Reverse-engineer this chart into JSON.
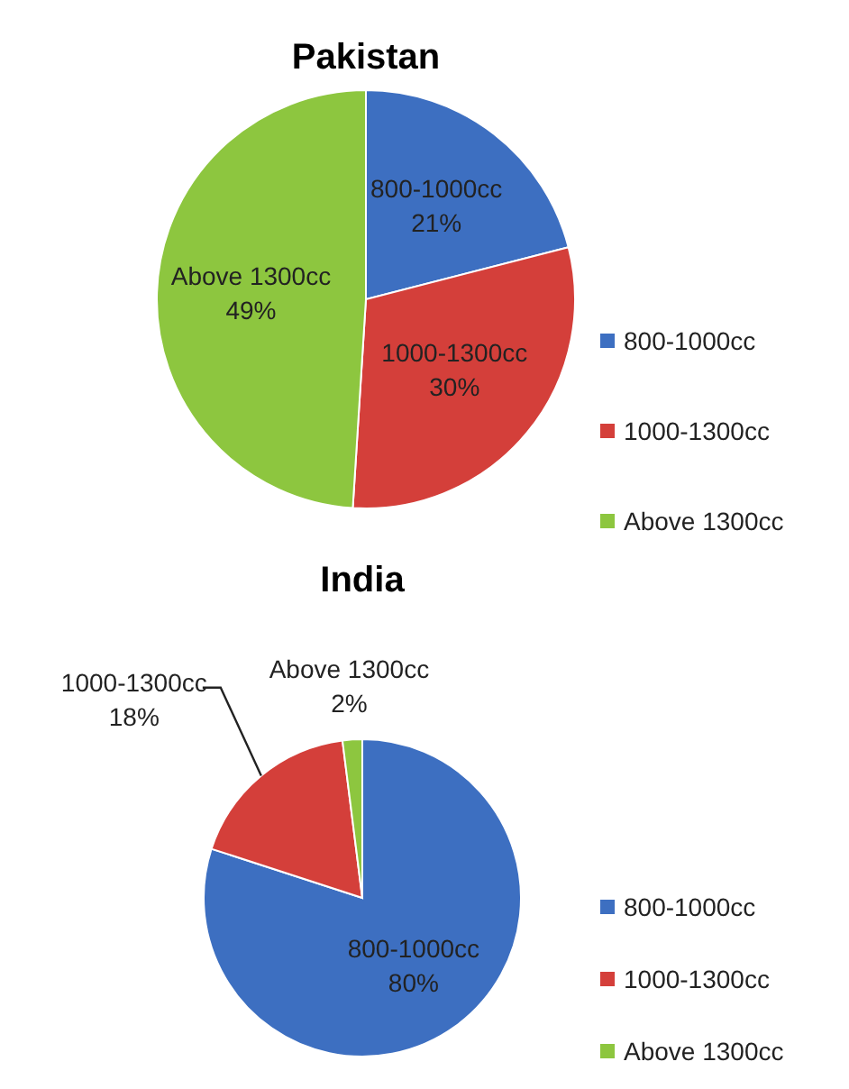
{
  "chart_data": [
    {
      "type": "pie",
      "title": "Pakistan",
      "categories": [
        "800-1000cc",
        "1000-1300cc",
        "Above 1300cc"
      ],
      "values": [
        21,
        30,
        49
      ],
      "value_labels": [
        "21%",
        "30%",
        "49%"
      ],
      "colors": [
        "#3d6fc1",
        "#d43f3a",
        "#8dc63f"
      ],
      "legend": "right"
    },
    {
      "type": "pie",
      "title": "India",
      "categories": [
        "800-1000cc",
        "1000-1300cc",
        "Above 1300cc"
      ],
      "values": [
        80,
        18,
        2
      ],
      "value_labels": [
        "80%",
        "18%",
        "2%"
      ],
      "colors": [
        "#3d6fc1",
        "#d43f3a",
        "#8dc63f"
      ],
      "legend": "bottom right"
    }
  ]
}
